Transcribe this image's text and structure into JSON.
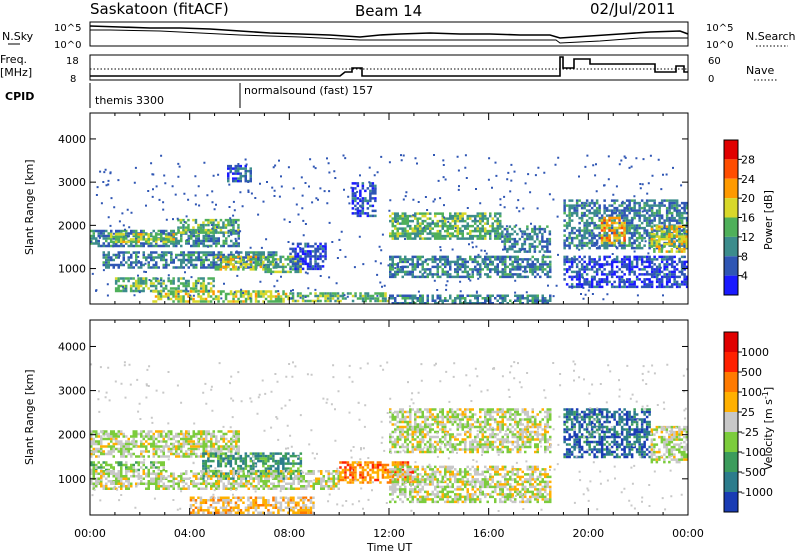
{
  "header": {
    "title": "Saskatoon (fitACF)",
    "beam": "Beam 14",
    "date": "02/Jul/2011"
  },
  "strips": {
    "nsky_label": "N.Sky",
    "nsky_ticks": [
      "10^5",
      "10^0"
    ],
    "nsearch_label": "N.Search",
    "freq_label": "Freq.",
    "freq_unit": "[MHz]",
    "freq_ticks": [
      "18",
      "8"
    ],
    "nave_ticks": [
      "60",
      "0"
    ],
    "nave_label": "Nave",
    "cpid_label": "CPID",
    "cpid_segments": [
      {
        "name": "themis 3300",
        "start_hour": 0
      },
      {
        "name": "normalsound (fast) 157",
        "start_hour": 6
      }
    ]
  },
  "chart_data": [
    {
      "type": "heatmap",
      "name": "Power",
      "ylabel": "Slant Range [km]",
      "ylim": [
        180,
        4600
      ],
      "yticks": [
        1000,
        2000,
        3000,
        4000
      ],
      "xlim": [
        0,
        24
      ],
      "colorbar_label": "Power [dB]",
      "colorbar_ticks": [
        "4",
        "8",
        "12",
        "16",
        "20",
        "24",
        "28"
      ],
      "colorbar_colors": [
        "#1a1aff",
        "#2f56b4",
        "#3c8c8c",
        "#4fb05a",
        "#d8d82a",
        "#ff9a00",
        "#ff4d00",
        "#e00000"
      ],
      "regions": [
        {
          "x0": 0.0,
          "x1": 6.0,
          "y0": 1550,
          "y1": 1900,
          "level": 2
        },
        {
          "x0": 0.8,
          "x1": 3.5,
          "y0": 1620,
          "y1": 1820,
          "level": 4
        },
        {
          "x0": 3.5,
          "x1": 6.0,
          "y0": 1850,
          "y1": 2150,
          "level": 3
        },
        {
          "x0": 0.5,
          "x1": 7.5,
          "y0": 1000,
          "y1": 1400,
          "level": 2
        },
        {
          "x0": 5.0,
          "x1": 7.0,
          "y0": 1000,
          "y1": 1300,
          "level": 4
        },
        {
          "x0": 7.0,
          "x1": 8.5,
          "y0": 900,
          "y1": 1300,
          "level": 3
        },
        {
          "x0": 1.0,
          "x1": 5.0,
          "y0": 500,
          "y1": 800,
          "level": 3
        },
        {
          "x0": 2.5,
          "x1": 8.0,
          "y0": 250,
          "y1": 500,
          "level": 4
        },
        {
          "x0": 8.0,
          "x1": 12.0,
          "y0": 220,
          "y1": 450,
          "level": 3
        },
        {
          "x0": 12.0,
          "x1": 18.5,
          "y0": 220,
          "y1": 400,
          "level": 2
        },
        {
          "x0": 8.0,
          "x1": 9.5,
          "y0": 1000,
          "y1": 1600,
          "level": 1
        },
        {
          "x0": 12.0,
          "x1": 16.5,
          "y0": 1700,
          "y1": 2300,
          "level": 3
        },
        {
          "x0": 16.5,
          "x1": 18.5,
          "y0": 1400,
          "y1": 2000,
          "level": 2
        },
        {
          "x0": 12.0,
          "x1": 18.5,
          "y0": 800,
          "y1": 1300,
          "level": 2
        },
        {
          "x0": 10.5,
          "x1": 11.5,
          "y0": 2200,
          "y1": 3000,
          "level": 1
        },
        {
          "x0": 5.5,
          "x1": 6.5,
          "y0": 3000,
          "y1": 3400,
          "level": 1
        },
        {
          "x0": 19.0,
          "x1": 24.0,
          "y0": 1500,
          "y1": 2600,
          "level": 2
        },
        {
          "x0": 20.5,
          "x1": 21.5,
          "y0": 1600,
          "y1": 2200,
          "level": 5
        },
        {
          "x0": 22.5,
          "x1": 24.0,
          "y0": 1400,
          "y1": 2000,
          "level": 4
        },
        {
          "x0": 19.0,
          "x1": 24.0,
          "y0": 600,
          "y1": 1300,
          "level": 1
        }
      ]
    },
    {
      "type": "heatmap",
      "name": "Velocity",
      "ylabel": "Slant Range [km]",
      "ylim": [
        180,
        4600
      ],
      "yticks": [
        1000,
        2000,
        3000,
        4000
      ],
      "xlim": [
        0,
        24
      ],
      "colorbar_label": "Velocity [m s",
      "colorbar_sup": "-1",
      "colorbar_label_end": "]",
      "colorbar_ticks": [
        "1000",
        "500",
        "100",
        "25",
        "-25",
        "-100",
        "-500",
        "-1000"
      ],
      "colorbar_colors": [
        "#1a3cb4",
        "#2c7c8c",
        "#3c9c5c",
        "#7ccc3c",
        "#c8c8c8",
        "#ffb000",
        "#ff7a00",
        "#ff2000",
        "#e00000"
      ],
      "regions": [
        {
          "x0": 0.0,
          "x1": 6.0,
          "y0": 1500,
          "y1": 2100,
          "level": 4
        },
        {
          "x0": 0.0,
          "x1": 3.0,
          "y0": 1200,
          "y1": 1400,
          "level": 3
        },
        {
          "x0": 4.5,
          "x1": 8.5,
          "y0": 1000,
          "y1": 1600,
          "level": 2
        },
        {
          "x0": 0.0,
          "x1": 10.0,
          "y0": 800,
          "y1": 1200,
          "level": 4
        },
        {
          "x0": 4.0,
          "x1": 9.0,
          "y0": 220,
          "y1": 600,
          "level": 5
        },
        {
          "x0": 10.0,
          "x1": 13.0,
          "y0": 900,
          "y1": 1400,
          "level": 6
        },
        {
          "x0": 12.0,
          "x1": 18.5,
          "y0": 1600,
          "y1": 2600,
          "level": 4
        },
        {
          "x0": 12.0,
          "x1": 18.5,
          "y0": 500,
          "y1": 1300,
          "level": 4
        },
        {
          "x0": 19.0,
          "x1": 22.5,
          "y0": 1500,
          "y1": 2600,
          "level": 1
        },
        {
          "x0": 22.5,
          "x1": 24.0,
          "y0": 1400,
          "y1": 2200,
          "level": 4
        }
      ]
    }
  ],
  "xaxis": {
    "ticks": [
      "00:00",
      "04:00",
      "08:00",
      "12:00",
      "16:00",
      "20:00",
      "00:00"
    ],
    "label": "Time UT"
  }
}
